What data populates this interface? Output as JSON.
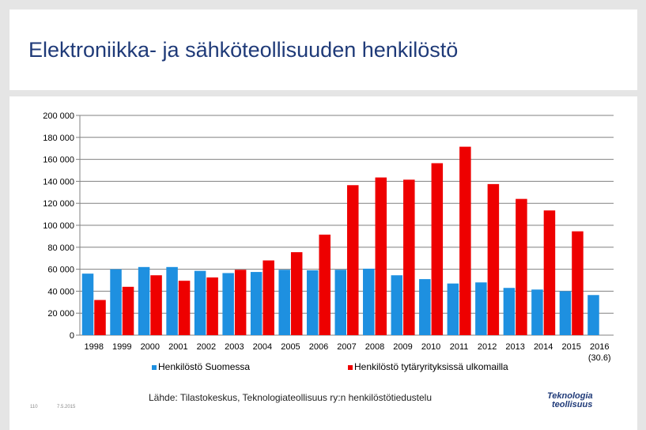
{
  "page": {
    "title": "Elektroniikka- ja sähköteollisuuden henkilöstö",
    "source": "Lähde: Tilastokeskus, Teknologiateollisuus ry:n henkilöstötiedustelu",
    "footer_number": "110",
    "footer_date": "7.5.2015",
    "logo_line1": "Teknologia",
    "logo_line2": "teollisuus"
  },
  "colors": {
    "series1": "#1e90e0",
    "series2": "#ee0000",
    "title": "#1f3a78",
    "grid": "#808080"
  },
  "chart_data": {
    "type": "bar",
    "title": "Elektroniikka- ja sähköteollisuuden henkilöstö",
    "xlabel": "",
    "ylabel": "",
    "ylim": [
      0,
      200000
    ],
    "grid": true,
    "legend": "bottom",
    "yticks": [
      0,
      20000,
      40000,
      60000,
      80000,
      100000,
      120000,
      140000,
      160000,
      180000,
      200000
    ],
    "ytick_labels": [
      "0",
      "20 000",
      "40 000",
      "60 000",
      "80 000",
      "100 000",
      "120 000",
      "140 000",
      "160 000",
      "180 000",
      "200 000"
    ],
    "categories": [
      "1998",
      "1999",
      "2000",
      "2001",
      "2002",
      "2003",
      "2004",
      "2005",
      "2006",
      "2007",
      "2008",
      "2009",
      "2010",
      "2011",
      "2012",
      "2013",
      "2014",
      "2015",
      "2016"
    ],
    "category_notes": {
      "2016": "(30.6)"
    },
    "series": [
      {
        "name": "Henkilöstö Suomessa",
        "values": [
          56000,
          60000,
          62000,
          62000,
          58500,
          56500,
          57500,
          59500,
          59000,
          59500,
          60500,
          54500,
          51000,
          47000,
          48000,
          43000,
          41500,
          40000,
          36500
        ]
      },
      {
        "name": "Henkilöstö tytäryrityksissä ulkomailla",
        "values": [
          32000,
          44000,
          54500,
          49500,
          52500,
          59500,
          68000,
          75500,
          91500,
          136500,
          143500,
          141500,
          156500,
          171500,
          137500,
          124000,
          113500,
          94500,
          null
        ]
      }
    ]
  }
}
